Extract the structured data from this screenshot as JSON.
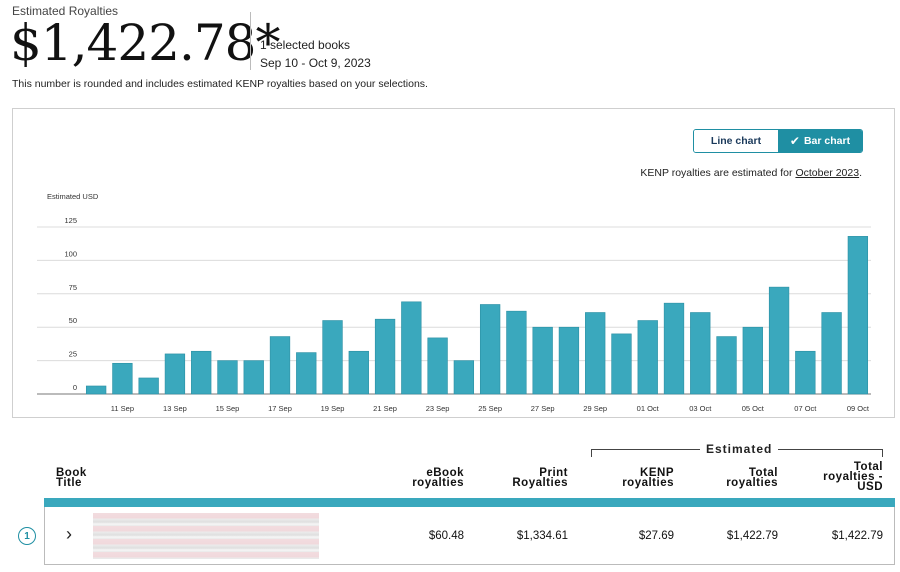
{
  "header": {
    "label": "Estimated Royalties",
    "amount": "$1,422.78*",
    "selected_books": "1 selected books",
    "date_range": "Sep 10 - Oct 9, 2023",
    "note": "This number is rounded and includes estimated KENP royalties based on your selections."
  },
  "chart_controls": {
    "line_label": "Line chart",
    "bar_label": "Bar chart",
    "kenp_prefix": "KENP royalties are estimated for ",
    "kenp_month": "October 2023",
    "kenp_suffix": "."
  },
  "chart_data": {
    "type": "bar",
    "ylabel": "Estimated USD",
    "ylim": [
      0,
      125
    ],
    "yticks": [
      0,
      25,
      50,
      75,
      100,
      125
    ],
    "grid": true,
    "bar_color": "#3aa8bd",
    "categories": [
      "10 Sep",
      "11 Sep",
      "12 Sep",
      "13 Sep",
      "14 Sep",
      "15 Sep",
      "16 Sep",
      "17 Sep",
      "18 Sep",
      "19 Sep",
      "20 Sep",
      "21 Sep",
      "22 Sep",
      "23 Sep",
      "24 Sep",
      "25 Sep",
      "26 Sep",
      "27 Sep",
      "28 Sep",
      "29 Sep",
      "30 Sep",
      "01 Oct",
      "02 Oct",
      "03 Oct",
      "04 Oct",
      "05 Oct",
      "06 Oct",
      "07 Oct",
      "08 Oct",
      "09 Oct"
    ],
    "tick_labels": [
      "11 Sep",
      "13 Sep",
      "15 Sep",
      "17 Sep",
      "19 Sep",
      "21 Sep",
      "23 Sep",
      "25 Sep",
      "27 Sep",
      "29 Sep",
      "01 Oct",
      "03 Oct",
      "05 Oct",
      "07 Oct",
      "09 Oct"
    ],
    "values": [
      6,
      23,
      12,
      30,
      32,
      25,
      25,
      43,
      31,
      55,
      32,
      56,
      69,
      42,
      25,
      67,
      62,
      50,
      50,
      61,
      45,
      55,
      68,
      61,
      43,
      50,
      80,
      32,
      61,
      118
    ]
  },
  "table": {
    "estimated_label": "Estimated",
    "columns": {
      "title": [
        "Book",
        "Title"
      ],
      "ebook": [
        "eBook",
        "royalties"
      ],
      "print": [
        "Print",
        "Royalties"
      ],
      "kenp": [
        "KENP",
        "royalties"
      ],
      "total": [
        "Total",
        "royalties"
      ],
      "usd": [
        "Total",
        "royalties -",
        "USD"
      ]
    },
    "rows": [
      {
        "num": "1",
        "ebook": "$60.48",
        "print": "$1,334.61",
        "kenp": "$27.69",
        "total": "$1,422.79",
        "usd": "$1,422.79"
      }
    ]
  }
}
